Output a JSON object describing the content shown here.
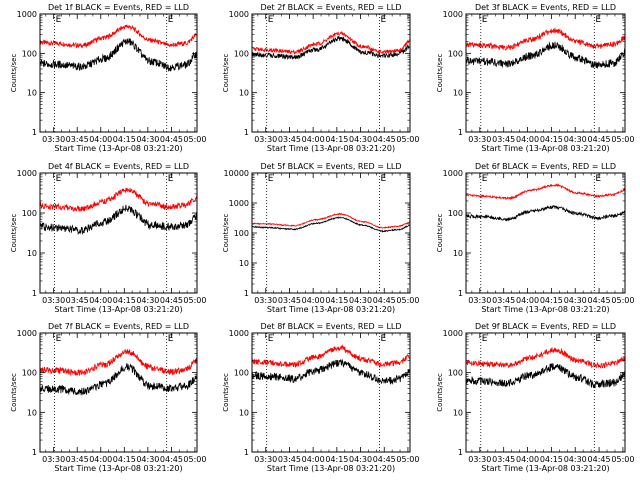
{
  "figure": {
    "background": "#ffffff",
    "colors": {
      "events": "#000000",
      "lld": "#ff0000",
      "axes": "#000000",
      "markers": "#000000"
    }
  },
  "chart_data": [
    {
      "type": "line",
      "title": "Det 1f BLACK = Events, RED = LLD",
      "xlabel": "Start Time (13-Apr-08 03:21:20)",
      "ylabel": "Counts/sec",
      "yscale": "log",
      "ylim": [
        1,
        1000
      ],
      "y_ticks": [
        "1",
        "10",
        "100",
        "1000"
      ],
      "x_ticks": [
        "03:30",
        "03:45",
        "04:00",
        "04:15",
        "04:30",
        "04:45",
        "05:00"
      ],
      "x_tick_minutes": [
        30,
        45,
        60,
        75,
        90,
        105,
        120
      ],
      "xlim_minutes": [
        21.3,
        121.3
      ],
      "marker_lines_minutes": [
        30.6,
        102.0
      ],
      "marker_labels": [
        "E",
        "E"
      ],
      "grid": false,
      "series": [
        {
          "name": "LLD",
          "color": "#ff0000",
          "baseline": 190,
          "peak": 480,
          "minimum_after_peak": 160,
          "end": 300,
          "noise": 0.06
        },
        {
          "name": "Events",
          "color": "#000000",
          "baseline": 55,
          "peak": 200,
          "minimum_after_peak": 45,
          "end": 100,
          "noise": 0.1
        }
      ]
    },
    {
      "type": "line",
      "title": "Det 2f BLACK = Events, RED = LLD",
      "xlabel": "Start Time (13-Apr-08 03:21:20)",
      "ylabel": "Counts/sec",
      "yscale": "log",
      "ylim": [
        1,
        1000
      ],
      "y_ticks": [
        "1",
        "10",
        "100",
        "1000"
      ],
      "x_ticks": [
        "03:30",
        "03:45",
        "04:00",
        "04:15",
        "04:30",
        "04:45",
        "05:00"
      ],
      "x_tick_minutes": [
        30,
        45,
        60,
        75,
        90,
        105,
        120
      ],
      "xlim_minutes": [
        21.3,
        121.3
      ],
      "marker_lines_minutes": [
        30.6,
        102.0
      ],
      "marker_labels": [
        "E",
        "E"
      ],
      "grid": false,
      "series": [
        {
          "name": "LLD",
          "color": "#ff0000",
          "baseline": 130,
          "peak": 320,
          "minimum_after_peak": 105,
          "end": 210,
          "noise": 0.05
        },
        {
          "name": "Events",
          "color": "#000000",
          "baseline": 95,
          "peak": 240,
          "minimum_after_peak": 85,
          "end": 160,
          "noise": 0.06
        }
      ]
    },
    {
      "type": "line",
      "title": "Det 3f BLACK = Events, RED = LLD",
      "xlabel": "Start Time (13-Apr-08 03:21:20)",
      "ylabel": "Counts/sec",
      "yscale": "log",
      "ylim": [
        1,
        1000
      ],
      "y_ticks": [
        "1",
        "10",
        "100",
        "1000"
      ],
      "x_ticks": [
        "03:30",
        "03:45",
        "04:00",
        "04:15",
        "04:30",
        "04:45",
        "05:00"
      ],
      "x_tick_minutes": [
        30,
        45,
        60,
        75,
        90,
        105,
        120
      ],
      "xlim_minutes": [
        21.3,
        121.3
      ],
      "marker_lines_minutes": [
        30.6,
        102.0
      ],
      "marker_labels": [
        "E",
        "E"
      ],
      "grid": false,
      "series": [
        {
          "name": "LLD",
          "color": "#ff0000",
          "baseline": 170,
          "peak": 380,
          "minimum_after_peak": 150,
          "end": 260,
          "noise": 0.07
        },
        {
          "name": "Events",
          "color": "#000000",
          "baseline": 65,
          "peak": 160,
          "minimum_after_peak": 50,
          "end": 110,
          "noise": 0.1
        }
      ]
    },
    {
      "type": "line",
      "title": "Det 4f BLACK = Events, RED = LLD",
      "xlabel": "Start Time (13-Apr-08 03:21:20)",
      "ylabel": "Counts/sec",
      "yscale": "log",
      "ylim": [
        1,
        1000
      ],
      "y_ticks": [
        "1",
        "10",
        "100",
        "1000"
      ],
      "x_ticks": [
        "03:30",
        "03:45",
        "04:00",
        "04:15",
        "04:30",
        "04:45",
        "05:00"
      ],
      "x_tick_minutes": [
        30,
        45,
        60,
        75,
        90,
        105,
        120
      ],
      "xlim_minutes": [
        21.3,
        121.3
      ],
      "marker_lines_minutes": [
        30.6,
        102.0
      ],
      "marker_labels": [
        "E",
        "E"
      ],
      "grid": false,
      "series": [
        {
          "name": "LLD",
          "color": "#ff0000",
          "baseline": 150,
          "peak": 380,
          "minimum_after_peak": 140,
          "end": 250,
          "noise": 0.07
        },
        {
          "name": "Events",
          "color": "#000000",
          "baseline": 45,
          "peak": 130,
          "minimum_after_peak": 45,
          "end": 85,
          "noise": 0.1
        }
      ]
    },
    {
      "type": "line",
      "title": "Det 5f BLACK = Events, RED = LLD",
      "xlabel": "Start Time (13-Apr-08 03:21:20)",
      "ylabel": "Counts/sec",
      "yscale": "log",
      "ylim": [
        1,
        10000
      ],
      "y_ticks": [
        "1",
        "10",
        "100",
        "1000",
        "10000"
      ],
      "x_ticks": [
        "03:30",
        "03:45",
        "04:00",
        "04:15",
        "04:30",
        "04:45",
        "05:00"
      ],
      "x_tick_minutes": [
        30,
        45,
        60,
        75,
        90,
        105,
        120
      ],
      "xlim_minutes": [
        21.3,
        121.3
      ],
      "marker_lines_minutes": [
        30.6,
        102.0
      ],
      "marker_labels": [
        "E",
        "E"
      ],
      "grid": false,
      "series": [
        {
          "name": "LLD",
          "color": "#ff0000",
          "baseline": 210,
          "peak": 430,
          "minimum_after_peak": 150,
          "end": 230,
          "noise": 0.02
        },
        {
          "name": "Events",
          "color": "#000000",
          "baseline": 160,
          "peak": 330,
          "minimum_after_peak": 115,
          "end": 180,
          "noise": 0.02
        }
      ]
    },
    {
      "type": "line",
      "title": "Det 6f BLACK = Events, RED = LLD",
      "xlabel": "Start Time (13-Apr-08 03:21:20)",
      "ylabel": "Counts/sec",
      "yscale": "log",
      "ylim": [
        1,
        1000
      ],
      "y_ticks": [
        "1",
        "10",
        "100",
        "1000"
      ],
      "x_ticks": [
        "03:30",
        "03:45",
        "04:00",
        "04:15",
        "04:30",
        "04:45",
        "05:00"
      ],
      "x_tick_minutes": [
        30,
        45,
        60,
        75,
        90,
        105,
        120
      ],
      "xlim_minutes": [
        21.3,
        121.3
      ],
      "marker_lines_minutes": [
        30.6,
        102.0
      ],
      "marker_labels": [
        "E",
        "E"
      ],
      "grid": false,
      "series": [
        {
          "name": "LLD",
          "color": "#ff0000",
          "baseline": 280,
          "peak": 500,
          "minimum_after_peak": 260,
          "end": 380,
          "noise": 0.025
        },
        {
          "name": "Events",
          "color": "#000000",
          "baseline": 85,
          "peak": 140,
          "minimum_after_peak": 75,
          "end": 105,
          "noise": 0.04
        }
      ]
    },
    {
      "type": "line",
      "title": "Det 7f BLACK = Events, RED = LLD",
      "xlabel": "Start Time (13-Apr-08 03:21:20)",
      "ylabel": "Counts/sec",
      "yscale": "log",
      "ylim": [
        1,
        1000
      ],
      "y_ticks": [
        "1",
        "10",
        "100",
        "1000"
      ],
      "x_ticks": [
        "03:30",
        "03:45",
        "04:00",
        "04:15",
        "04:30",
        "04:45",
        "05:00"
      ],
      "x_tick_minutes": [
        30,
        45,
        60,
        75,
        90,
        105,
        120
      ],
      "xlim_minutes": [
        21.3,
        121.3
      ],
      "marker_lines_minutes": [
        30.6,
        102.0
      ],
      "marker_labels": [
        "E",
        "E"
      ],
      "grid": false,
      "series": [
        {
          "name": "LLD",
          "color": "#ff0000",
          "baseline": 120,
          "peak": 340,
          "minimum_after_peak": 105,
          "end": 210,
          "noise": 0.08
        },
        {
          "name": "Events",
          "color": "#000000",
          "baseline": 40,
          "peak": 140,
          "minimum_after_peak": 40,
          "end": 80,
          "noise": 0.1
        }
      ]
    },
    {
      "type": "line",
      "title": "Det 8f BLACK = Events, RED = LLD",
      "xlabel": "Start Time (13-Apr-08 03:21:20)",
      "ylabel": "Counts/sec",
      "yscale": "log",
      "ylim": [
        1,
        1000
      ],
      "y_ticks": [
        "1",
        "10",
        "100",
        "1000"
      ],
      "x_ticks": [
        "03:30",
        "03:45",
        "04:00",
        "04:15",
        "04:30",
        "04:45",
        "05:00"
      ],
      "x_tick_minutes": [
        30,
        45,
        60,
        75,
        90,
        105,
        120
      ],
      "xlim_minutes": [
        21.3,
        121.3
      ],
      "marker_lines_minutes": [
        30.6,
        102.0
      ],
      "marker_labels": [
        "E",
        "E"
      ],
      "grid": false,
      "series": [
        {
          "name": "LLD",
          "color": "#ff0000",
          "baseline": 190,
          "peak": 420,
          "minimum_after_peak": 160,
          "end": 260,
          "noise": 0.07
        },
        {
          "name": "Events",
          "color": "#000000",
          "baseline": 85,
          "peak": 180,
          "minimum_after_peak": 60,
          "end": 110,
          "noise": 0.1
        }
      ]
    },
    {
      "type": "line",
      "title": "Det 9f BLACK = Events, RED = LLD",
      "xlabel": "Start Time (13-Apr-08 03:21:20)",
      "ylabel": "Counts/sec",
      "yscale": "log",
      "ylim": [
        1,
        1000
      ],
      "y_ticks": [
        "1",
        "10",
        "100",
        "1000"
      ],
      "x_ticks": [
        "03:30",
        "03:45",
        "04:00",
        "04:15",
        "04:30",
        "04:45",
        "05:00"
      ],
      "x_tick_minutes": [
        30,
        45,
        60,
        75,
        90,
        105,
        120
      ],
      "xlim_minutes": [
        21.3,
        121.3
      ],
      "marker_lines_minutes": [
        30.6,
        102.0
      ],
      "marker_labels": [
        "E",
        "E"
      ],
      "grid": false,
      "series": [
        {
          "name": "LLD",
          "color": "#ff0000",
          "baseline": 180,
          "peak": 380,
          "minimum_after_peak": 150,
          "end": 240,
          "noise": 0.07
        },
        {
          "name": "Events",
          "color": "#000000",
          "baseline": 65,
          "peak": 140,
          "minimum_after_peak": 50,
          "end": 90,
          "noise": 0.1
        }
      ]
    }
  ]
}
